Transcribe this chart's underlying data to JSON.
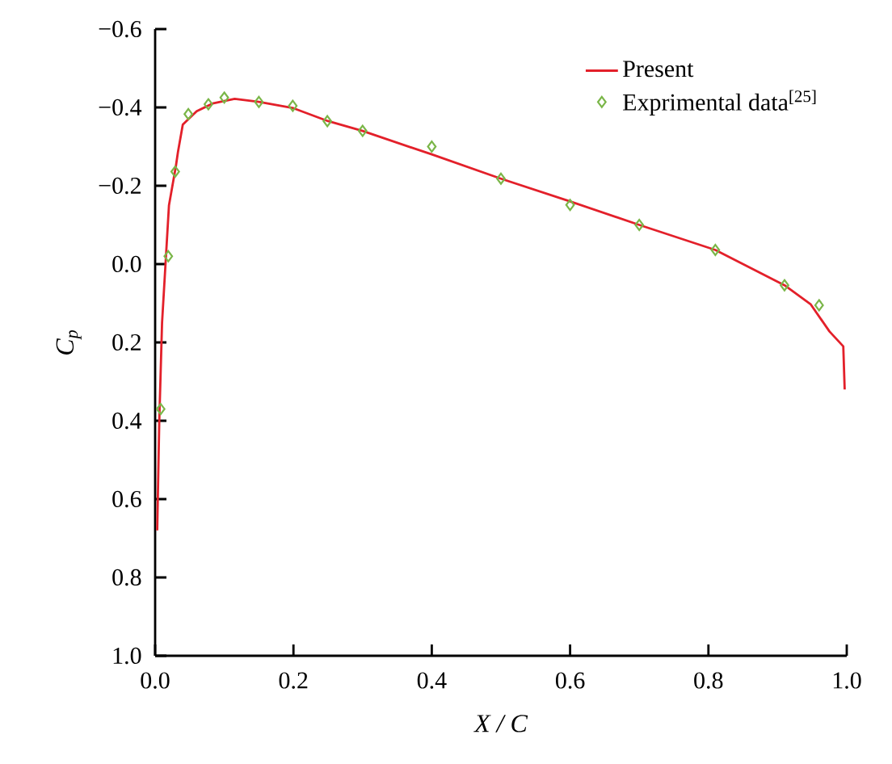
{
  "chart_data": {
    "type": "line",
    "xlabel": "X / C",
    "ylabel": "C$_{p}$",
    "xlim": [
      0.0,
      1.0
    ],
    "ylim": [
      1.0,
      -0.6
    ],
    "xticks": [
      {
        "value": 0.0,
        "label": "0.0"
      },
      {
        "value": 0.2,
        "label": "0.2"
      },
      {
        "value": 0.4,
        "label": "0.4"
      },
      {
        "value": 0.6,
        "label": "0.6"
      },
      {
        "value": 0.8,
        "label": "0.8"
      },
      {
        "value": 1.0,
        "label": "1.0"
      }
    ],
    "yticks": [
      {
        "value": -0.6,
        "label": "−0.6"
      },
      {
        "value": -0.4,
        "label": "−0.4"
      },
      {
        "value": -0.2,
        "label": "−0.2"
      },
      {
        "value": 0.0,
        "label": "0.0"
      },
      {
        "value": 0.2,
        "label": "0.2"
      },
      {
        "value": 0.4,
        "label": "0.4"
      },
      {
        "value": 0.6,
        "label": "0.6"
      },
      {
        "value": 0.8,
        "label": "0.8"
      },
      {
        "value": 1.0,
        "label": "1.0"
      }
    ],
    "grid": false,
    "legend": "top right",
    "series": [
      {
        "name": "Present",
        "color": "#e3202a",
        "marker": "none",
        "line_style": "solid",
        "x": [
          0.003,
          0.006,
          0.01,
          0.015,
          0.02,
          0.03,
          0.033,
          0.04,
          0.06,
          0.083,
          0.115,
          0.15,
          0.2,
          0.25,
          0.3,
          0.4,
          0.5,
          0.6,
          0.7,
          0.81,
          0.91,
          0.948,
          0.975,
          0.995,
          0.997
        ],
        "values": [
          0.68,
          0.4,
          0.15,
          0.0,
          -0.15,
          -0.25,
          -0.286,
          -0.356,
          -0.39,
          -0.41,
          -0.422,
          -0.414,
          -0.398,
          -0.365,
          -0.34,
          -0.28,
          -0.218,
          -0.16,
          -0.1,
          -0.036,
          0.054,
          0.103,
          0.172,
          0.21,
          0.32
        ]
      },
      {
        "name": "Exprimental data$^{[25]}$",
        "type": "scatter",
        "color": "#7ab648",
        "marker": "diamond",
        "x": [
          0.008,
          0.019,
          0.029,
          0.048,
          0.077,
          0.1,
          0.15,
          0.199,
          0.249,
          0.3,
          0.4,
          0.5,
          0.6,
          0.7,
          0.81,
          0.91,
          0.96
        ],
        "values": [
          0.37,
          -0.02,
          -0.236,
          -0.383,
          -0.408,
          -0.425,
          -0.414,
          -0.404,
          -0.365,
          -0.34,
          -0.3,
          -0.218,
          -0.151,
          -0.1,
          -0.036,
          0.054,
          0.105
        ]
      }
    ]
  }
}
